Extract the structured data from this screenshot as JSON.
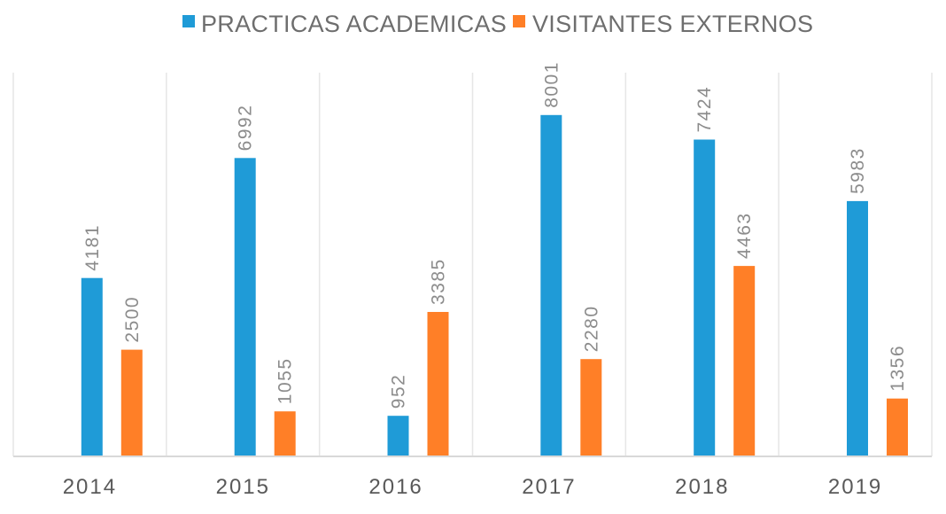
{
  "chart_data": {
    "type": "bar",
    "title": "",
    "xlabel": "",
    "ylabel": "",
    "categories": [
      "2014",
      "2015",
      "2016",
      "2017",
      "2018",
      "2019"
    ],
    "series": [
      {
        "name": "PRACTICAS ACADEMICAS",
        "color": "#1f9bd7",
        "values": [
          4181,
          6992,
          952,
          8001,
          7424,
          5983
        ]
      },
      {
        "name": "VISITANTES EXTERNOS",
        "color": "#ff7f27",
        "values": [
          2500,
          1055,
          3385,
          2280,
          4463,
          1356
        ]
      }
    ],
    "ylim": [
      0,
      9000
    ],
    "grid": "vertical category separators",
    "legend": "top-center",
    "data_labels": "rotated vertical above bars",
    "colors": {
      "axis": "#d9d9d9",
      "gridline": "#e6e6e6"
    }
  }
}
